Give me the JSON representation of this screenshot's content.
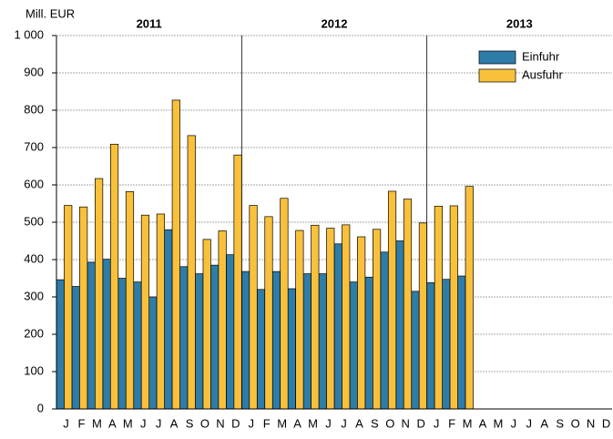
{
  "chart_data": {
    "type": "bar",
    "y_label": "Mill. EUR",
    "year_labels": [
      "2011",
      "2012",
      "2013"
    ],
    "categories": [
      "J",
      "F",
      "M",
      "A",
      "M",
      "J",
      "J",
      "A",
      "S",
      "O",
      "N",
      "D",
      "J",
      "F",
      "M",
      "A",
      "M",
      "J",
      "J",
      "A",
      "S",
      "O",
      "N",
      "D",
      "J",
      "F",
      "M",
      "A",
      "M",
      "J",
      "J",
      "A",
      "S",
      "O",
      "N",
      "D"
    ],
    "series": [
      {
        "name": "Einfuhr",
        "color": "#2e7ca8",
        "values": [
          346,
          328,
          393,
          401,
          350,
          340,
          300,
          480,
          381,
          362,
          385,
          413,
          368,
          320,
          368,
          322,
          362,
          362,
          442,
          340,
          353,
          420,
          450,
          315,
          338,
          347,
          356,
          null,
          null,
          null,
          null,
          null,
          null,
          null,
          null,
          null
        ]
      },
      {
        "name": "Ausfuhr",
        "color": "#f9c13b",
        "values": [
          545,
          541,
          617,
          709,
          582,
          519,
          522,
          827,
          732,
          454,
          477,
          680,
          545,
          515,
          564,
          478,
          492,
          484,
          493,
          461,
          481,
          583,
          562,
          498,
          543,
          544,
          596,
          null,
          null,
          null,
          null,
          null,
          null,
          null,
          null,
          null
        ]
      }
    ],
    "ylim": [
      0,
      1000
    ],
    "yticks": [
      0,
      100,
      200,
      300,
      400,
      500,
      600,
      700,
      800,
      900,
      {
        "value": 1000,
        "label": "1 000"
      }
    ],
    "grid": true
  }
}
